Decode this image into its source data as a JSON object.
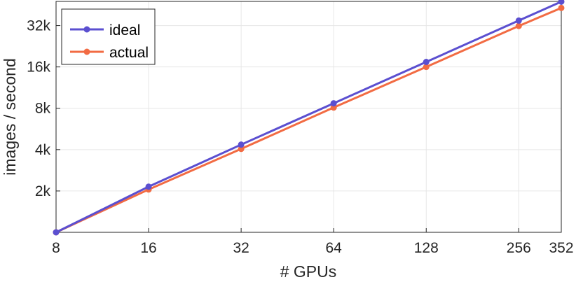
{
  "chart_data": {
    "type": "line",
    "xlabel": "# GPUs",
    "ylabel": "images / second",
    "x_scale": "log2",
    "y_scale": "log2",
    "xlim": [
      8,
      352
    ],
    "ylim": [
      1000,
      48000
    ],
    "x_ticks": [
      8,
      16,
      32,
      64,
      128,
      256,
      352
    ],
    "x_tick_labels": [
      "8",
      "16",
      "32",
      "64",
      "128",
      "256",
      "352"
    ],
    "y_ticks": [
      2000,
      4000,
      8000,
      16000,
      32000
    ],
    "y_tick_labels": [
      "2k",
      "4k",
      "8k",
      "16k",
      "32k"
    ],
    "grid": true,
    "legend_position": "top-left",
    "x": [
      8,
      16,
      32,
      64,
      128,
      256,
      352
    ],
    "series": [
      {
        "name": "ideal",
        "color": "#5b4fd0",
        "values": [
          1000,
          2150,
          4350,
          8700,
          17400,
          34800,
          47800
        ]
      },
      {
        "name": "actual",
        "color": "#f26b43",
        "values": [
          1000,
          2050,
          4050,
          8100,
          16000,
          31800,
          43000
        ]
      }
    ]
  }
}
